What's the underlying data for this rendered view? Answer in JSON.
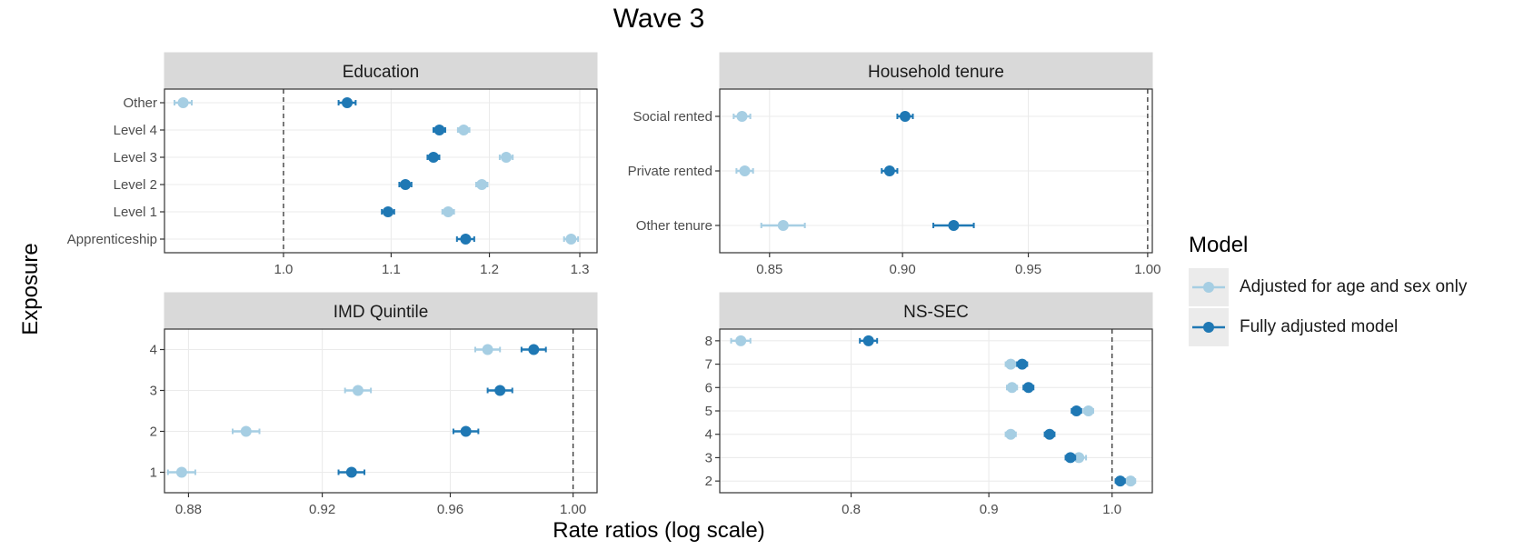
{
  "title": "Wave 3",
  "xlabel": "Rate ratios (log scale)",
  "ylabel": "Exposure",
  "legend": {
    "title": "Model",
    "items": [
      {
        "label": "Adjusted for age and sex only",
        "color": "#a6cee3"
      },
      {
        "label": "Fully adjusted model",
        "color": "#1f78b4"
      }
    ]
  },
  "colors": {
    "strip_bg": "#d9d9d9",
    "panel_border": "#333333",
    "grid": "#ebebeb",
    "reference_line": "#333333"
  },
  "chart_data": [
    {
      "type": "scatter",
      "title": "Education",
      "x_scale": "log",
      "xlim": [
        0.9,
        1.32
      ],
      "xticks": [
        1.0,
        1.1,
        1.2,
        1.3
      ],
      "xtick_labels": [
        "1.0",
        "1.1",
        "1.2",
        "1.3"
      ],
      "reference_line": 1.0,
      "categories": [
        "Other",
        "Level 4",
        "Level 3",
        "Level 2",
        "Level 1",
        "Apprenticeship"
      ],
      "series": [
        {
          "name": "Adjusted for age and sex only",
          "values": [
            0.915,
            1.173,
            1.218,
            1.192,
            1.157,
            1.29
          ],
          "lower": [
            0.908,
            1.167,
            1.211,
            1.186,
            1.151,
            1.282
          ],
          "upper": [
            0.922,
            1.179,
            1.225,
            1.198,
            1.163,
            1.298
          ]
        },
        {
          "name": "Fully adjusted model",
          "values": [
            1.058,
            1.148,
            1.142,
            1.114,
            1.097,
            1.175
          ],
          "lower": [
            1.05,
            1.142,
            1.136,
            1.108,
            1.091,
            1.166
          ],
          "upper": [
            1.066,
            1.154,
            1.148,
            1.12,
            1.103,
            1.184
          ]
        }
      ]
    },
    {
      "type": "scatter",
      "title": "Household tenure",
      "x_scale": "log",
      "xlim": [
        0.832,
        1.002
      ],
      "xticks": [
        0.85,
        0.9,
        0.95,
        1.0
      ],
      "xtick_labels": [
        "0.85",
        "0.90",
        "0.95",
        "1.00"
      ],
      "reference_line": 1.0,
      "categories": [
        "Social rented",
        "Private rented",
        "Other tenure"
      ],
      "series": [
        {
          "name": "Adjusted for age and sex only",
          "values": [
            0.84,
            0.841,
            0.855
          ],
          "lower": [
            0.837,
            0.838,
            0.847
          ],
          "upper": [
            0.843,
            0.844,
            0.863
          ]
        },
        {
          "name": "Fully adjusted model",
          "values": [
            0.901,
            0.895,
            0.92
          ],
          "lower": [
            0.898,
            0.892,
            0.912
          ],
          "upper": [
            0.904,
            0.898,
            0.928
          ]
        }
      ]
    },
    {
      "type": "scatter",
      "title": "IMD Quintile",
      "x_scale": "log",
      "xlim": [
        0.873,
        1.008
      ],
      "xticks": [
        0.88,
        0.92,
        0.96,
        1.0
      ],
      "xtick_labels": [
        "0.88",
        "0.92",
        "0.96",
        "1.00"
      ],
      "reference_line": 1.0,
      "categories": [
        "4",
        "3",
        "2",
        "1"
      ],
      "series": [
        {
          "name": "Adjusted for age and sex only",
          "values": [
            0.972,
            0.931,
            0.897,
            0.878
          ],
          "lower": [
            0.968,
            0.927,
            0.893,
            0.874
          ],
          "upper": [
            0.976,
            0.935,
            0.901,
            0.882
          ]
        },
        {
          "name": "Fully adjusted model",
          "values": [
            0.987,
            0.976,
            0.965,
            0.929
          ],
          "lower": [
            0.983,
            0.972,
            0.961,
            0.925
          ],
          "upper": [
            0.991,
            0.98,
            0.969,
            0.933
          ]
        }
      ]
    },
    {
      "type": "scatter",
      "title": "NS-SEC",
      "x_scale": "log",
      "xlim": [
        0.715,
        1.035
      ],
      "xticks": [
        0.8,
        0.9,
        1.0
      ],
      "xtick_labels": [
        "0.8",
        "0.9",
        "1.0"
      ],
      "reference_line": 1.0,
      "categories": [
        "8",
        "7",
        "6",
        "5",
        "4",
        "3",
        "2"
      ],
      "series": [
        {
          "name": "Adjusted for age and sex only",
          "values": [
            0.728,
            0.917,
            0.918,
            0.98,
            0.917,
            0.972,
            1.016
          ],
          "lower": [
            0.722,
            0.913,
            0.914,
            0.976,
            0.913,
            0.966,
            1.012
          ],
          "upper": [
            0.734,
            0.921,
            0.922,
            0.984,
            0.921,
            0.978,
            1.02
          ]
        },
        {
          "name": "Fully adjusted model",
          "values": [
            0.812,
            0.926,
            0.931,
            0.97,
            0.948,
            0.965,
            1.007
          ],
          "lower": [
            0.806,
            0.922,
            0.927,
            0.966,
            0.944,
            0.961,
            1.003
          ],
          "upper": [
            0.818,
            0.93,
            0.935,
            0.974,
            0.952,
            0.969,
            1.011
          ]
        }
      ]
    }
  ]
}
